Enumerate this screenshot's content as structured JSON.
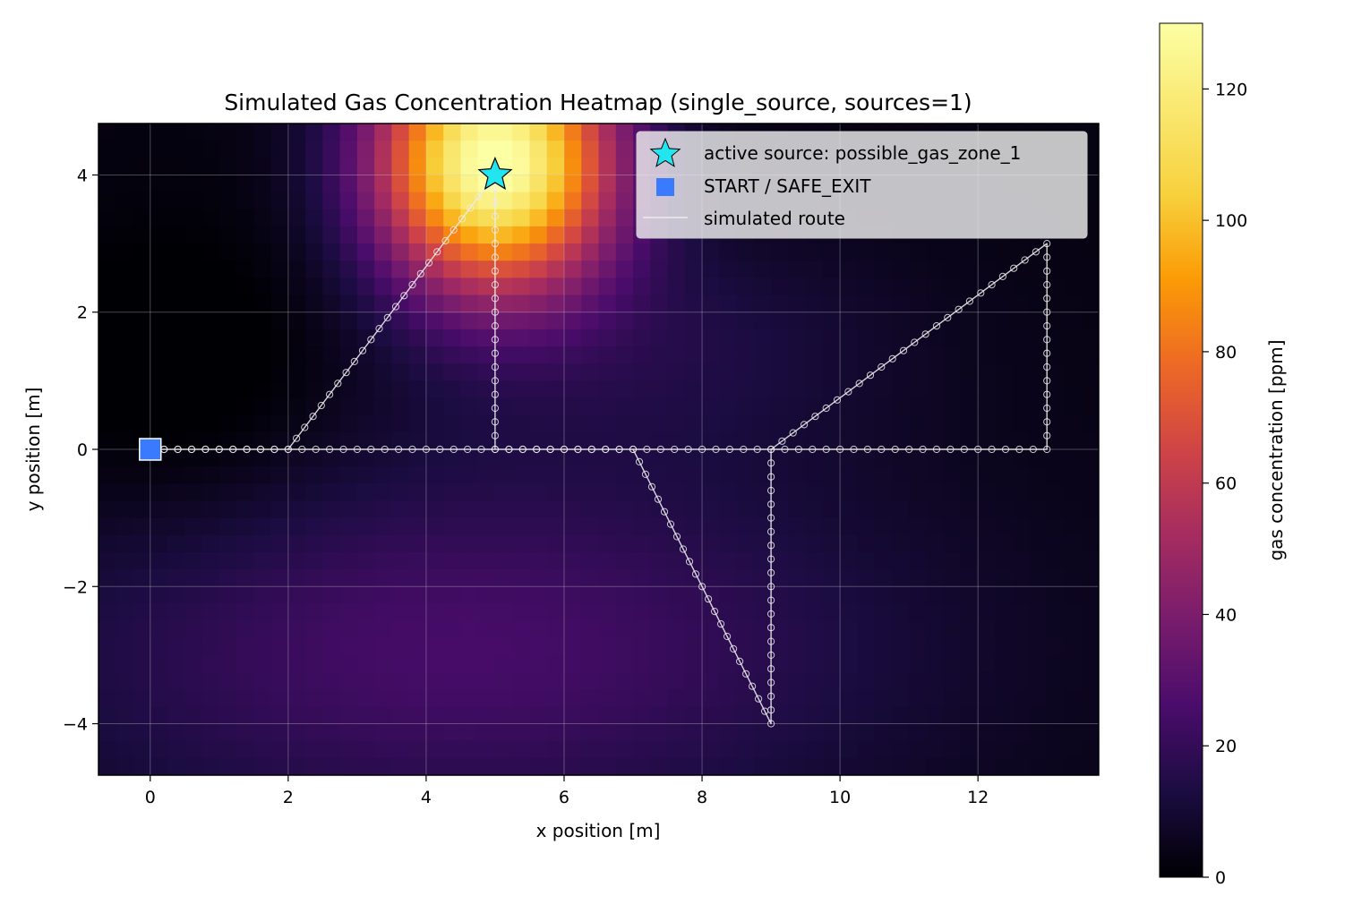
{
  "chart_data": {
    "type": "heatmap",
    "title": "Simulated Gas Concentration Heatmap (single_source, sources=1)",
    "xlabel": "x position [m]",
    "ylabel": "y position [m]",
    "xlim": [
      -0.75,
      13.75
    ],
    "ylim": [
      -4.75,
      4.75
    ],
    "xticks": [
      0,
      2,
      4,
      6,
      8,
      10,
      12
    ],
    "yticks": [
      -4,
      -2,
      0,
      2,
      4
    ],
    "grid": true,
    "colormap": "inferno",
    "colorbar": {
      "label": "gas concentration [ppm]",
      "range": [
        0,
        130
      ],
      "ticks": [
        0,
        20,
        40,
        60,
        80,
        100,
        120
      ]
    },
    "heat_field": {
      "background_ppm": 3,
      "source": {
        "x": 5,
        "y": 4.2,
        "peak_ppm": 130,
        "sigma_x": 1.2,
        "sigma_y": 1.3
      },
      "plume": {
        "peak_ppm": 22,
        "center_y": -2.9,
        "sigma_y": 2.0,
        "center_x": 4.5,
        "sigma_x": 4.5
      },
      "dark_zone": {
        "x": 0.5,
        "y": 0.8,
        "reduction_ppm": 8,
        "sigma": 1.6
      }
    },
    "legend": {
      "position": "top-right",
      "entries": [
        {
          "label": "active source: possible_gas_zone_1",
          "marker": "star",
          "color": "#22e5f0"
        },
        {
          "label": "START / SAFE_EXIT",
          "marker": "square",
          "color": "#3a7afe"
        },
        {
          "label": "simulated route",
          "marker": "line",
          "color": "#ececec"
        }
      ]
    },
    "source_marker": {
      "x": 5,
      "y": 4,
      "label": "active source: possible_gas_zone_1"
    },
    "start_marker": {
      "x": 0,
      "y": 0,
      "label": "START / SAFE_EXIT"
    },
    "route": {
      "name": "simulated route",
      "step_m": 0.2,
      "waypoints": [
        [
          0,
          0
        ],
        [
          2,
          0
        ],
        [
          5,
          4
        ],
        [
          5,
          0
        ],
        [
          7,
          0
        ],
        [
          9,
          -4
        ],
        [
          9,
          0
        ],
        [
          13,
          3
        ],
        [
          13,
          0
        ],
        [
          0,
          0
        ]
      ]
    }
  },
  "colors": {
    "route": "#ececec",
    "source_marker": "#22e5f0",
    "start_marker": "#3a7afe",
    "grid": "#cccccc"
  }
}
